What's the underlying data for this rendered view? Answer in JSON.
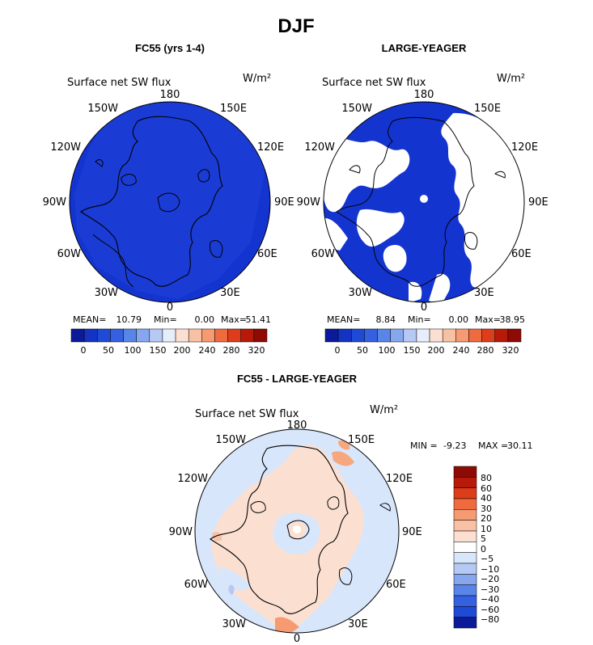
{
  "figure": {
    "title": "DJF"
  },
  "chart_data": [
    {
      "type": "heatmap",
      "title": "FC55 (yrs 1-4)",
      "subtitle": "Surface net SW flux",
      "units": "W/m²",
      "projection": "north-polar-stereographic",
      "lon_labels": [
        "180",
        "150E",
        "120E",
        "90E",
        "60E",
        "30E",
        "0",
        "30W",
        "60W",
        "90W",
        "120W",
        "150W"
      ],
      "stats": {
        "mean_label": "MEAN=",
        "mean": "10.79",
        "min_label": "Min=",
        "min": "0.00",
        "max_label": "Max=",
        "max": "51.41"
      },
      "colorbar": {
        "colors": [
          "#0a1a99",
          "#1433c2",
          "#1f4ad6",
          "#3560e0",
          "#5a85e8",
          "#86a6ee",
          "#b5c9f4",
          "#e6eefa",
          "#fbe0d2",
          "#f9c1a4",
          "#f69a72",
          "#f06a3f",
          "#dd3d1a",
          "#b81a0a",
          "#8e0b05"
        ],
        "tick_labels": [
          "0",
          "50",
          "100",
          "150",
          "200",
          "240",
          "280",
          "320"
        ]
      },
      "field": {
        "dominant_color": "#1434d0",
        "note": ""
      }
    },
    {
      "type": "heatmap",
      "title": "LARGE-YEAGER",
      "subtitle": "Surface net SW flux",
      "units": "W/m²",
      "projection": "north-polar-stereographic",
      "lon_labels": [
        "180",
        "150E",
        "120E",
        "90E",
        "60E",
        "30E",
        "0",
        "30W",
        "60W",
        "90W",
        "120W",
        "150W"
      ],
      "stats": {
        "mean_label": "MEAN=",
        "mean": "8.84",
        "min_label": "Min=",
        "min": "0.00",
        "max_label": "Max=",
        "max": "38.95"
      },
      "colorbar": {
        "colors": [
          "#0a1a99",
          "#1433c2",
          "#1f4ad6",
          "#3560e0",
          "#5a85e8",
          "#86a6ee",
          "#b5c9f4",
          "#e6eefa",
          "#fbe0d2",
          "#f9c1a4",
          "#f69a72",
          "#f06a3f",
          "#dd3d1a",
          "#b81a0a",
          "#8e0b05"
        ],
        "tick_labels": [
          "0",
          "50",
          "100",
          "150",
          "200",
          "240",
          "280",
          "320"
        ]
      },
      "field": {
        "dominant_color": "#1434d0",
        "note": ""
      }
    },
    {
      "type": "heatmap",
      "title": "FC55 - LARGE-YEAGER",
      "subtitle": "Surface net SW flux",
      "units": "W/m²",
      "projection": "north-polar-stereographic",
      "lon_labels": [
        "180",
        "150E",
        "120E",
        "90E",
        "60E",
        "30E",
        "0",
        "30W",
        "60W",
        "90W",
        "120W",
        "150W"
      ],
      "stats": {
        "min_label": "MIN =",
        "min": "-9.23",
        "max_label": "MAX =",
        "max": "30.11"
      },
      "colorbar": {
        "colors": [
          "#8e0b05",
          "#b81a0a",
          "#dd3d1a",
          "#f06a3f",
          "#f69a72",
          "#f9c1a4",
          "#fbe0d2",
          "#ffffff",
          "#d7e6fb",
          "#b5c9f4",
          "#86a6ee",
          "#5a85e8",
          "#3560e0",
          "#1f4ad6",
          "#0a1a99"
        ],
        "tick_labels": [
          "80",
          "60",
          "40",
          "30",
          "20",
          "10",
          "5",
          "0",
          "−5",
          "−10",
          "−20",
          "−30",
          "−40",
          "−60",
          "−80"
        ]
      },
      "field": {
        "dominant_color": "#fbe0d2",
        "note": ""
      }
    }
  ]
}
